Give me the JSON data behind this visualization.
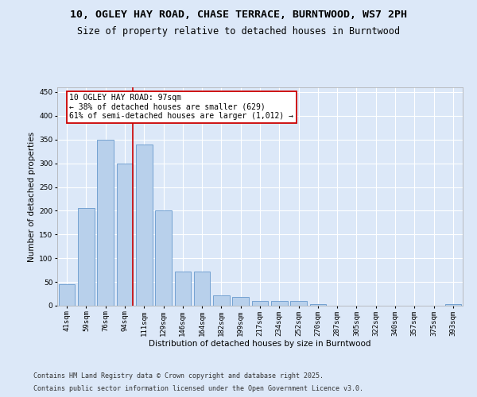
{
  "title_line1": "10, OGLEY HAY ROAD, CHASE TERRACE, BURNTWOOD, WS7 2PH",
  "title_line2": "Size of property relative to detached houses in Burntwood",
  "xlabel": "Distribution of detached houses by size in Burntwood",
  "ylabel": "Number of detached properties",
  "categories": [
    "41sqm",
    "59sqm",
    "76sqm",
    "94sqm",
    "111sqm",
    "129sqm",
    "146sqm",
    "164sqm",
    "182sqm",
    "199sqm",
    "217sqm",
    "234sqm",
    "252sqm",
    "270sqm",
    "287sqm",
    "305sqm",
    "322sqm",
    "340sqm",
    "357sqm",
    "375sqm",
    "393sqm"
  ],
  "values": [
    45,
    205,
    350,
    300,
    340,
    200,
    72,
    72,
    22,
    19,
    10,
    10,
    10,
    3,
    0,
    0,
    0,
    0,
    0,
    0,
    3
  ],
  "bar_color": "#b8d0eb",
  "bar_edge_color": "#6699cc",
  "vline_x_index": 3,
  "vline_color": "#cc0000",
  "ylim": [
    0,
    460
  ],
  "yticks": [
    0,
    50,
    100,
    150,
    200,
    250,
    300,
    350,
    400,
    450
  ],
  "annotation_text": "10 OGLEY HAY ROAD: 97sqm\n← 38% of detached houses are smaller (629)\n61% of semi-detached houses are larger (1,012) →",
  "annotation_box_color": "#ffffff",
  "annotation_box_edge": "#cc0000",
  "footer_line1": "Contains HM Land Registry data © Crown copyright and database right 2025.",
  "footer_line2": "Contains public sector information licensed under the Open Government Licence v3.0.",
  "bg_color": "#dce8f8",
  "plot_bg_color": "#dce8f8",
  "grid_color": "#ffffff",
  "title_fontsize": 9.5,
  "subtitle_fontsize": 8.5,
  "axis_label_fontsize": 7.5,
  "tick_fontsize": 6.5,
  "annotation_fontsize": 7,
  "footer_fontsize": 6
}
